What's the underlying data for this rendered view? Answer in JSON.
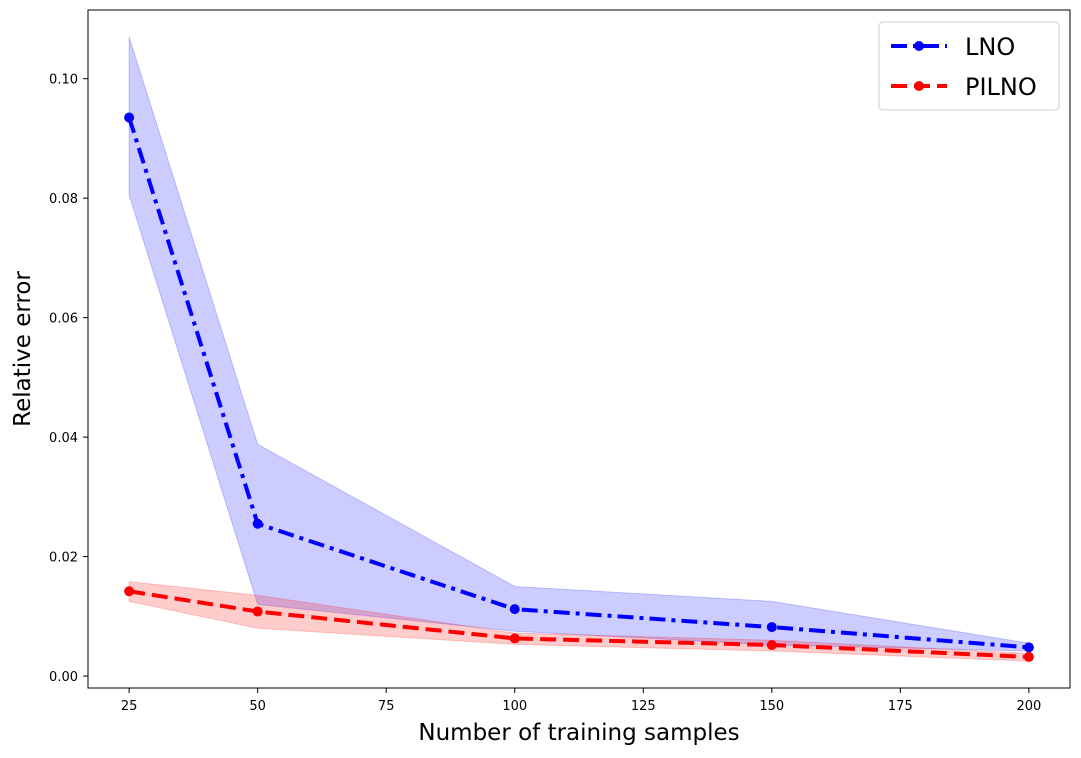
{
  "chart_data": {
    "type": "line",
    "title": "",
    "xlabel": "Number of training samples",
    "ylabel": "Relative error",
    "x": [
      25,
      50,
      100,
      150,
      200
    ],
    "xlim": [
      17,
      208
    ],
    "ylim": [
      -0.002,
      0.1115
    ],
    "xticks": [
      25,
      50,
      75,
      100,
      125,
      150,
      175,
      200
    ],
    "yticks": [
      0.0,
      0.02,
      0.04,
      0.06,
      0.08,
      0.1
    ],
    "ytick_labels": [
      "0.00",
      "0.02",
      "0.04",
      "0.06",
      "0.08",
      "0.10"
    ],
    "grid": false,
    "legend_position": "top-right",
    "series": [
      {
        "name": "LNO",
        "color": "#0000ff",
        "line_style": "dash-dot",
        "marker": "circle",
        "values": [
          0.0935,
          0.0255,
          0.0112,
          0.0082,
          0.0048
        ],
        "band_upper": [
          0.107,
          0.0388,
          0.015,
          0.0125,
          0.0055
        ],
        "band_lower": [
          0.0805,
          0.012,
          0.0075,
          0.0052,
          0.0042
        ]
      },
      {
        "name": "PILNO",
        "color": "#ff0000",
        "line_style": "dashed",
        "marker": "circle",
        "values": [
          0.0142,
          0.0108,
          0.0063,
          0.0052,
          0.0032
        ],
        "band_upper": [
          0.0158,
          0.0135,
          0.0072,
          0.006,
          0.0038
        ],
        "band_lower": [
          0.0125,
          0.008,
          0.0053,
          0.0042,
          0.0025
        ]
      }
    ]
  }
}
